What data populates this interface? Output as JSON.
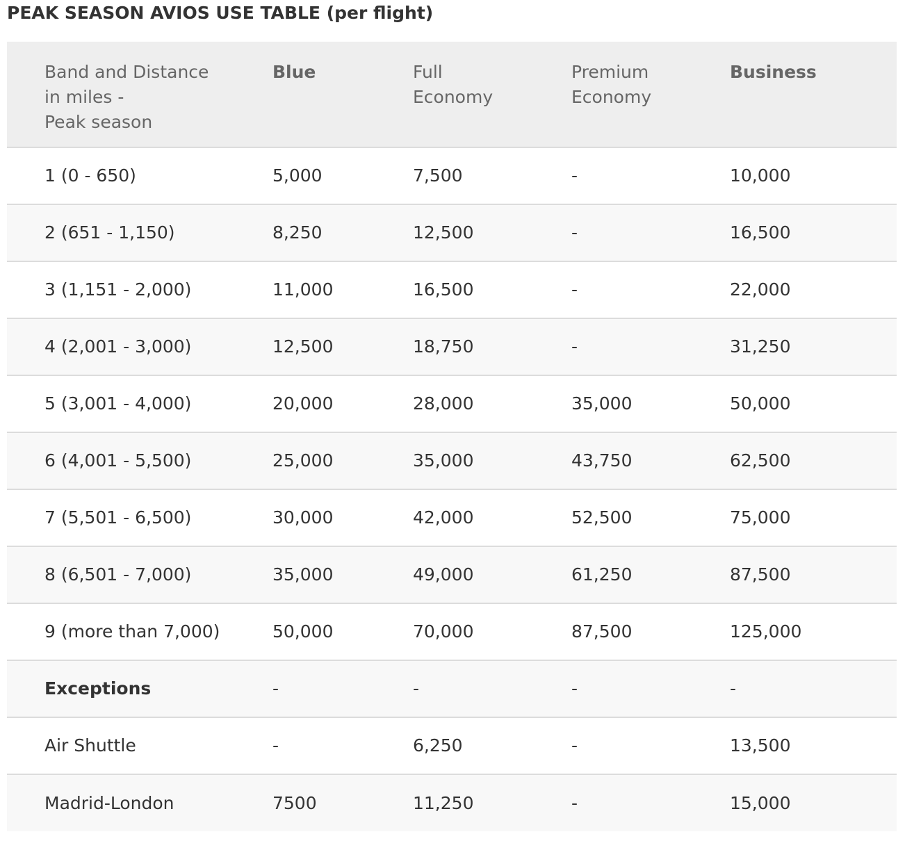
{
  "title": "PEAK SEASON AVIOS USE TABLE (per flight)",
  "headers": [
    "Band and Distance\nin miles -\nPeak season",
    "Blue",
    "Full\nEconomy",
    "Premium\nEconomy",
    "Business"
  ],
  "rows": [
    [
      "1 (0 - 650)",
      "5,000",
      "7,500",
      "-",
      "10,000"
    ],
    [
      "2 (651 - 1,150)",
      "8,250",
      "12,500",
      "-",
      "16,500"
    ],
    [
      "3 (1,151 - 2,000)",
      "11,000",
      "16,500",
      "-",
      "22,000"
    ],
    [
      "4 (2,001 - 3,000)",
      "12,500",
      "18,750",
      "-",
      "31,250"
    ],
    [
      "5 (3,001 - 4,000)",
      "20,000",
      "28,000",
      "35,000",
      "50,000"
    ],
    [
      "6 (4,001 - 5,500)",
      "25,000",
      "35,000",
      "43,750",
      "62,500"
    ],
    [
      "7 (5,501 - 6,500)",
      "30,000",
      "42,000",
      "52,500",
      "75,000"
    ],
    [
      "8 (6,501 - 7,000)",
      "35,000",
      "49,000",
      "61,250",
      "87,500"
    ],
    [
      "9 (more than 7,000)",
      "50,000",
      "70,000",
      "87,500",
      "125,000"
    ],
    [
      "Exceptions",
      "-",
      "-",
      "-",
      "-"
    ],
    [
      "Air Shuttle",
      "-",
      "6,250",
      "-",
      "13,500"
    ],
    [
      "Madrid-London",
      "7500",
      "11,250",
      "-",
      "15,000"
    ]
  ]
}
